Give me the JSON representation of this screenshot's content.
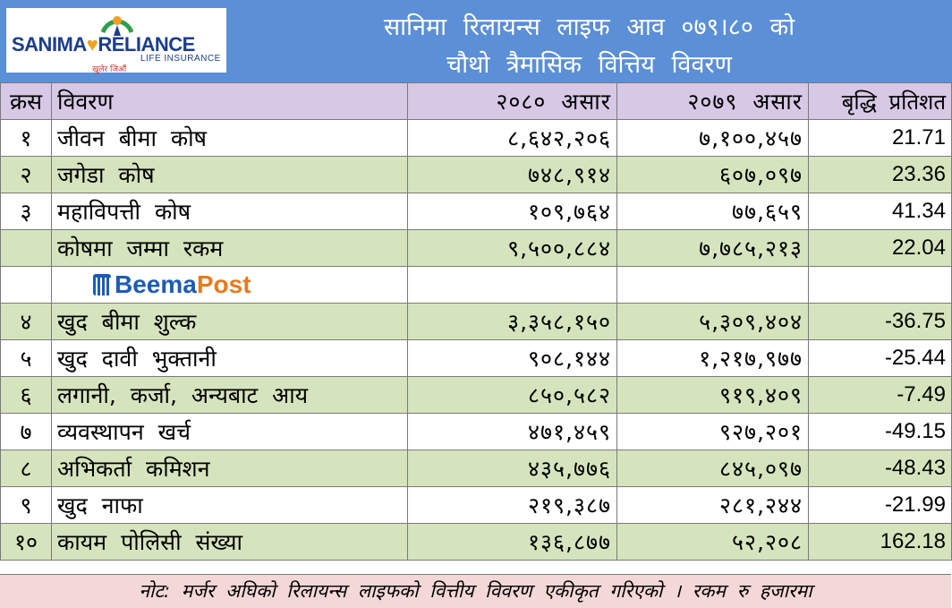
{
  "header": {
    "logo": {
      "brand_left": "SANIMA",
      "brand_right": "RELIANCE",
      "subline": "LIFE INSURANCE",
      "tagline": "खुलेर जिऔं"
    },
    "title_line1": "सानिमा रिलायन्स लाइफ आव ०७९।८० को",
    "title_line2": "चौथो त्रैमासिक वित्तिय विवरण"
  },
  "table": {
    "columns": [
      "क्रस",
      "विवरण",
      "२०८० असार",
      "२०७९ असार",
      "बृद्धि प्रतिशत"
    ],
    "rows": [
      {
        "sn": "१",
        "desc": "जीवन बीमा कोष",
        "y2080": "८,६४२,२०६",
        "y2079": "७,१००,४५७",
        "growth": "21.71"
      },
      {
        "sn": "२",
        "desc": "जगेडा कोष",
        "y2080": "७४८,९१४",
        "y2079": "६०७,०९७",
        "growth": "23.36"
      },
      {
        "sn": "३",
        "desc": "महाविपत्ती कोष",
        "y2080": "१०९,७६४",
        "y2079": "७७,६५९",
        "growth": "41.34"
      },
      {
        "sn": "",
        "desc": "कोषमा जम्मा रकम",
        "y2080": "९,५००,८८४",
        "y2079": "७,७८५,२१३",
        "growth": "22.04"
      },
      {
        "sn": "४",
        "desc": "खुद बीमा शुल्क",
        "y2080": "३,३५८,१५०",
        "y2079": "५,३०९,४०४",
        "growth": "-36.75"
      },
      {
        "sn": "५",
        "desc": "खुद दावी भुक्तानी",
        "y2080": "९०८,१४४",
        "y2079": "१,२१७,९७७",
        "growth": "-25.44"
      },
      {
        "sn": "६",
        "desc": "लगानी, कर्जा, अन्यबाट आय",
        "y2080": "८५०,५८२",
        "y2079": "९१९,४०९",
        "growth": "-7.49"
      },
      {
        "sn": "७",
        "desc": "व्यवस्थापन खर्च",
        "y2080": "४७१,४५९",
        "y2079": "९२७,२०१",
        "growth": "-49.15"
      },
      {
        "sn": "८",
        "desc": "अभिकर्ता कमिशन",
        "y2080": "४३५,७७६",
        "y2079": "८४५,०९७",
        "growth": "-48.43"
      },
      {
        "sn": "९",
        "desc": "खुद नाफा",
        "y2080": "२१९,३८७",
        "y2079": "२८१,२४४",
        "growth": "-21.99"
      },
      {
        "sn": "१०",
        "desc": "कायम पोलिसी संख्या",
        "y2080": "१३६,८७७",
        "y2079": "५२,२०८",
        "growth": "162.18"
      }
    ]
  },
  "watermark": {
    "brand_a": "Beema",
    "brand_b": "Post"
  },
  "note": "नोट: मर्जर अघिको रिलायन्स लाइफको वित्तीय विवरण एकीकृत गरिएको । रकम रु हजारमा"
}
